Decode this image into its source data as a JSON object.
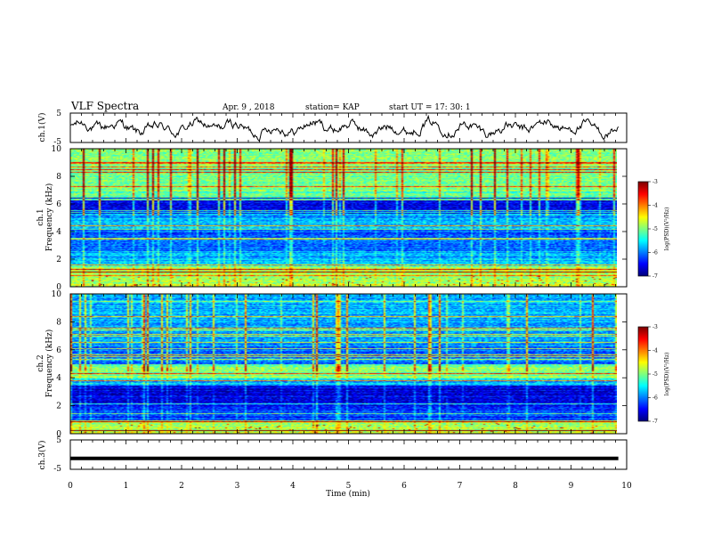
{
  "header": {
    "title": "VLF Spectra",
    "date": "Apr. 9  , 2018",
    "station": "station= KAP",
    "start_ut": "start  UT  =   17: 30: 1"
  },
  "chart_data": [
    {
      "type": "line",
      "panel": "ch1-waveform",
      "ylabel": "ch.1(V)",
      "ylim": [
        -5,
        5
      ],
      "yticks": [
        "5",
        "-5"
      ],
      "xlim": [
        0,
        10
      ]
    },
    {
      "type": "heatmap",
      "panel": "ch1-spectrogram",
      "ylabel_channel": "ch.1",
      "ylabel": "Frequency  (kHz)",
      "ylim": [
        0,
        10
      ],
      "yticks": [
        "0",
        "2",
        "4",
        "6",
        "8",
        "10"
      ],
      "xlim": [
        0,
        9.85
      ],
      "colorbar": {
        "label": "log(PSD)(V²/Hz)",
        "range": [
          -7,
          -3
        ],
        "ticks": [
          "-3",
          "-4",
          "-5",
          "-6",
          "-7"
        ]
      }
    },
    {
      "type": "heatmap",
      "panel": "ch2-spectrogram",
      "ylabel_channel": "ch.2",
      "ylabel": "Frequency  (kHz)",
      "ylim": [
        0,
        10
      ],
      "yticks": [
        "0",
        "2",
        "4",
        "6",
        "8",
        "10"
      ],
      "xlim": [
        0,
        9.85
      ],
      "colorbar": {
        "label": "log(PSD)(V²/Hz)",
        "range": [
          -7,
          -3
        ],
        "ticks": [
          "-3",
          "-4",
          "-5",
          "-6",
          "-7"
        ]
      }
    },
    {
      "type": "line",
      "panel": "ch3-waveform",
      "ylabel": "ch.3(V)",
      "ylim": [
        -5,
        5
      ],
      "yticks": [
        "5",
        "-5"
      ],
      "value_constant": -1.3,
      "xlim": [
        0,
        10
      ],
      "xlabel": "Time  (min)",
      "xticks": [
        "0",
        "1",
        "2",
        "3",
        "4",
        "5",
        "6",
        "7",
        "8",
        "9",
        "10"
      ]
    }
  ]
}
